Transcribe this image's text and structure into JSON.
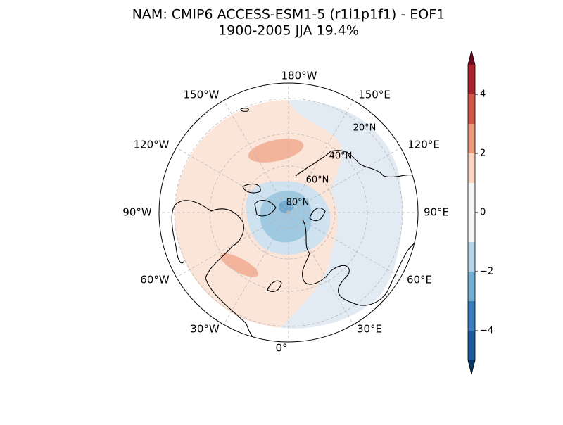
{
  "title": "NAM: CMIP6 ACCESS-ESM1-5 (r1i1p1f1) - EOF1",
  "subtitle": "1900-2005 JJA 19.4%",
  "map": {
    "longitude_labels": [
      "180°W",
      "150°E",
      "120°E",
      "90°E",
      "60°E",
      "30°E",
      "0°",
      "30°W",
      "60°W",
      "90°W",
      "120°W",
      "150°W"
    ],
    "latitude_labels": [
      "20°N",
      "40°N",
      "60°N",
      "80°N"
    ]
  },
  "colorbar": {
    "levels": [
      -5,
      -4,
      -3,
      -2,
      -1,
      1,
      2,
      3,
      4,
      5
    ],
    "colors": [
      "#1d5a9c",
      "#3a7fb9",
      "#74aed3",
      "#b5d4e8",
      "#f7f7f7",
      "#f9d5c2",
      "#ea9979",
      "#cd5a47",
      "#a8242e"
    ],
    "extend_colors": [
      "#0b3668",
      "#6d0a1e"
    ],
    "ticks": [
      {
        "value": -4,
        "label": "−4"
      },
      {
        "value": -2,
        "label": "−2"
      },
      0,
      2,
      4
    ]
  }
}
